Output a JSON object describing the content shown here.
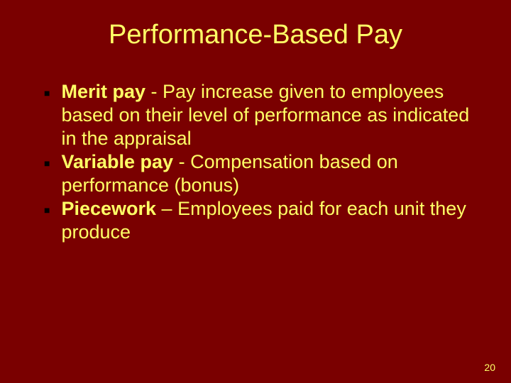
{
  "slide": {
    "title": "Performance-Based Pay",
    "background_color": "#7a0000",
    "text_color": "#ffff66",
    "bullet_color": "#000000",
    "title_fontsize": 38,
    "body_fontsize": 27,
    "page_number": "20",
    "bullets": [
      {
        "term": "Merit pay",
        "separator": " - ",
        "definition": "Pay increase given to employees based on their level of performance as indicated in the appraisal"
      },
      {
        "term": "Variable pay",
        "separator": " - ",
        "definition": "Compensation based on performance (bonus)"
      },
      {
        "term": "Piecework",
        "separator": " – ",
        "definition": "Employees paid for each unit they produce"
      }
    ]
  }
}
